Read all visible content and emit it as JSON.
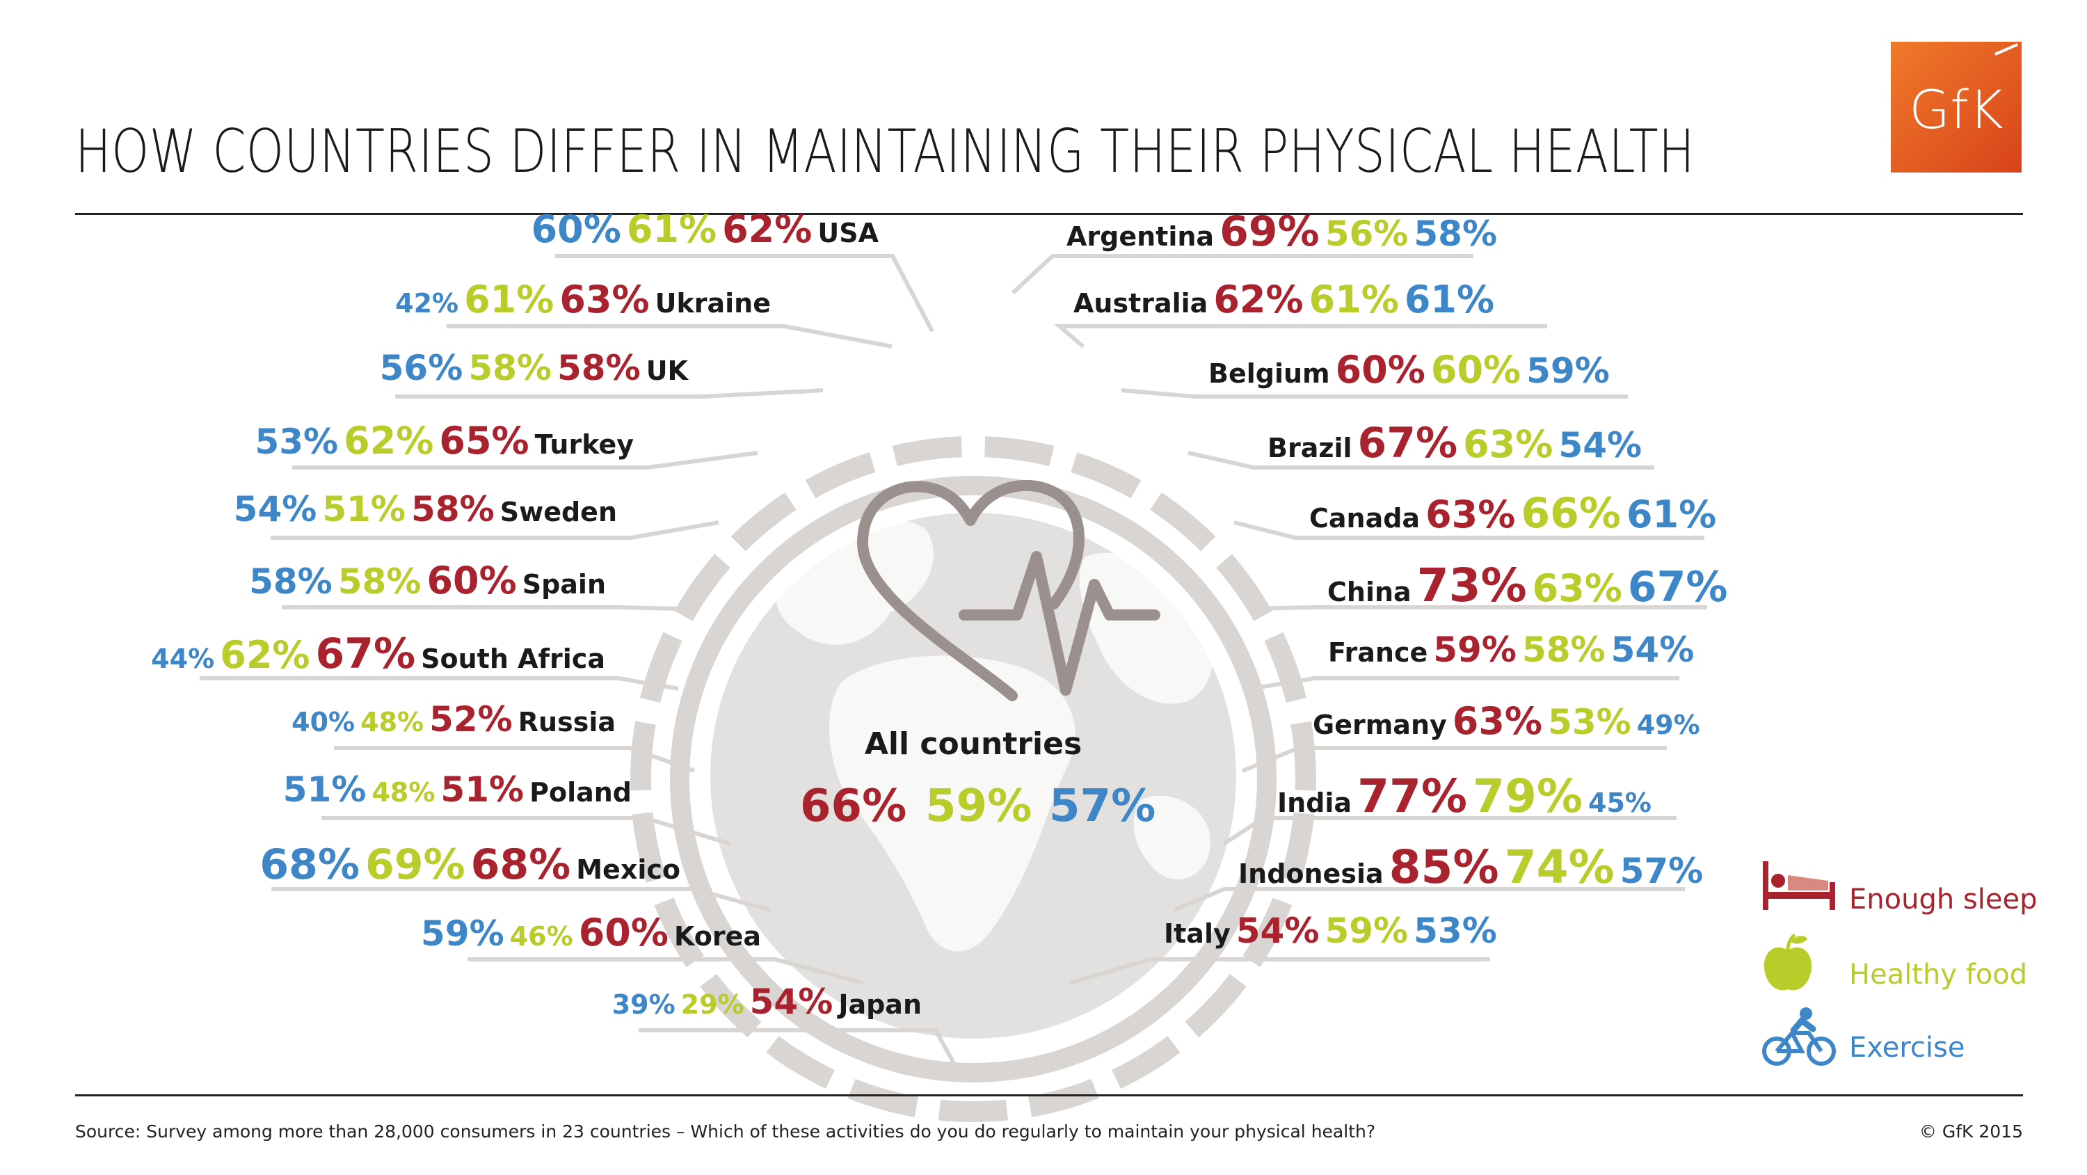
{
  "header": {
    "title": "HOW COUNTRIES DIFFER IN MAINTAINING THEIR PHYSICAL HEALTH",
    "logo_text": "GfK"
  },
  "footer": {
    "source": "Source: Survey among more than 28,000 consumers in 23 countries – Which of these activities do you do regularly to maintain your physical health?",
    "copyright": "© GfK 2015"
  },
  "colors": {
    "sleep": "#a8232e",
    "food": "#b8cc2a",
    "exercise": "#3d86c8",
    "ring": "#d8d5d2",
    "globe": "#e3e1df",
    "heart": "#9a908d",
    "logo": "#e8581c"
  },
  "legend": {
    "items": [
      {
        "label": "Enough sleep",
        "icon": "bed-icon",
        "color": "#a8232e"
      },
      {
        "label": "Healthy food",
        "icon": "apple-icon",
        "color": "#b8cc2a"
      },
      {
        "label": "Exercise",
        "icon": "cyclist-icon",
        "color": "#3d86c8"
      }
    ]
  },
  "center": {
    "label": "All countries",
    "icon": "heartbeat-icon"
  },
  "chart_data": {
    "type": "table",
    "series": [
      "Enough sleep",
      "Healthy food",
      "Exercise"
    ],
    "all_countries": {
      "sleep": 66,
      "food": 59,
      "exercise": 57
    },
    "countries": [
      {
        "name": "USA",
        "sleep": 62,
        "food": 61,
        "exercise": 60
      },
      {
        "name": "Ukraine",
        "sleep": 63,
        "food": 61,
        "exercise": 42
      },
      {
        "name": "UK",
        "sleep": 58,
        "food": 58,
        "exercise": 56
      },
      {
        "name": "Turkey",
        "sleep": 65,
        "food": 62,
        "exercise": 53
      },
      {
        "name": "Sweden",
        "sleep": 58,
        "food": 51,
        "exercise": 54
      },
      {
        "name": "Spain",
        "sleep": 60,
        "food": 58,
        "exercise": 58
      },
      {
        "name": "South Africa",
        "sleep": 67,
        "food": 62,
        "exercise": 44
      },
      {
        "name": "Russia",
        "sleep": 52,
        "food": 48,
        "exercise": 40
      },
      {
        "name": "Poland",
        "sleep": 51,
        "food": 48,
        "exercise": 51
      },
      {
        "name": "Mexico",
        "sleep": 68,
        "food": 69,
        "exercise": 68
      },
      {
        "name": "Korea",
        "sleep": 60,
        "food": 46,
        "exercise": 59
      },
      {
        "name": "Japan",
        "sleep": 54,
        "food": 29,
        "exercise": 39
      },
      {
        "name": "Argentina",
        "sleep": 69,
        "food": 56,
        "exercise": 58
      },
      {
        "name": "Australia",
        "sleep": 62,
        "food": 61,
        "exercise": 61
      },
      {
        "name": "Belgium",
        "sleep": 60,
        "food": 60,
        "exercise": 59
      },
      {
        "name": "Brazil",
        "sleep": 67,
        "food": 63,
        "exercise": 54
      },
      {
        "name": "Canada",
        "sleep": 63,
        "food": 66,
        "exercise": 61
      },
      {
        "name": "China",
        "sleep": 73,
        "food": 63,
        "exercise": 67
      },
      {
        "name": "France",
        "sleep": 59,
        "food": 58,
        "exercise": 54
      },
      {
        "name": "Germany",
        "sleep": 63,
        "food": 53,
        "exercise": 49
      },
      {
        "name": "India",
        "sleep": 77,
        "food": 79,
        "exercise": 45
      },
      {
        "name": "Indonesia",
        "sleep": 85,
        "food": 74,
        "exercise": 57
      },
      {
        "name": "Italy",
        "sleep": 54,
        "food": 59,
        "exercise": 53
      }
    ]
  }
}
